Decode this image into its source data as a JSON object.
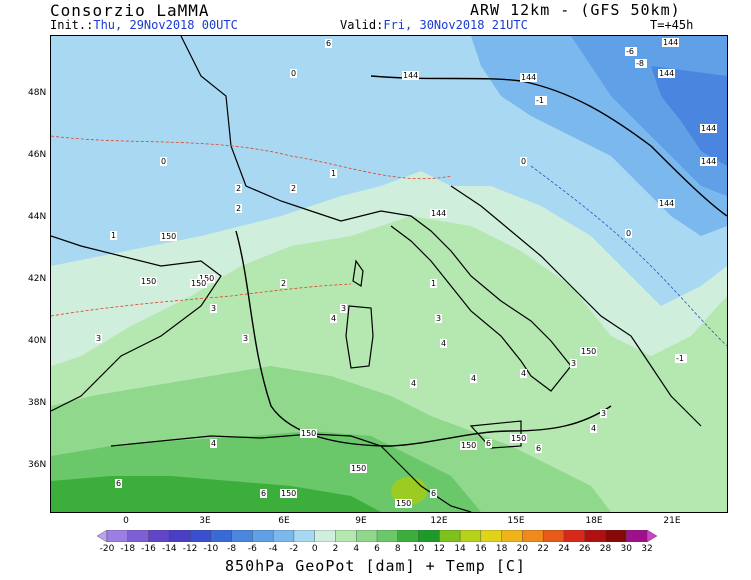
{
  "header": {
    "producer": "Consorzio LaMMA",
    "model": "ARW 12km - (GFS 50km)",
    "init_label": "Init.:",
    "init_value": "Thu, 29Nov2018 00UTC",
    "valid_label": "Valid:",
    "valid_value": "Fri, 30Nov2018 21UTC",
    "step": "T=+45h"
  },
  "axes": {
    "lat_labels": [
      "48N",
      "46N",
      "44N",
      "42N",
      "40N",
      "38N",
      "36N"
    ],
    "lon_labels": [
      "0",
      "3E",
      "6E",
      "9E",
      "12E",
      "15E",
      "18E",
      "21E"
    ]
  },
  "colorbar": {
    "labels": [
      "-20",
      "-18",
      "-16",
      "-14",
      "-12",
      "-10",
      "-8",
      "-6",
      "-4",
      "-2",
      "0",
      "2",
      "4",
      "6",
      "8",
      "10",
      "12",
      "14",
      "16",
      "18",
      "20",
      "22",
      "24",
      "26",
      "28",
      "30",
      "32"
    ],
    "colors": [
      "#b9a0f0",
      "#9d7ee6",
      "#7e5fd6",
      "#5f45c8",
      "#4a3fc4",
      "#3b4fd0",
      "#3a6ad8",
      "#4a86e0",
      "#5fa0e6",
      "#7bb8ee",
      "#a8d8f2",
      "#cfeedc",
      "#b5e8b0",
      "#8fd88c",
      "#6ac86a",
      "#3cae3c",
      "#1e9a2a",
      "#7cc21a",
      "#b8d21a",
      "#e0d41a",
      "#f0b41a",
      "#f08a1a",
      "#e85a1a",
      "#d8281a",
      "#b01010",
      "#880808",
      "#a0108c",
      "#d040c8"
    ]
  },
  "caption": "850hPa GeoPot [dam] + Temp [C]",
  "contour_labels": [
    {
      "t": "144",
      "c": "#000"
    },
    {
      "t": "144",
      "c": "#000"
    },
    {
      "t": "144",
      "c": "#000"
    },
    {
      "t": "144",
      "c": "#000"
    },
    {
      "t": "144",
      "c": "#000"
    },
    {
      "t": "144",
      "c": "#000"
    },
    {
      "t": "144",
      "c": "#000"
    },
    {
      "t": "144",
      "c": "#000"
    },
    {
      "t": "150",
      "c": "#000"
    },
    {
      "t": "150",
      "c": "#000"
    },
    {
      "t": "150",
      "c": "#000"
    },
    {
      "t": "150",
      "c": "#000"
    },
    {
      "t": "150",
      "c": "#000"
    },
    {
      "t": "150",
      "c": "#000"
    },
    {
      "t": "150",
      "c": "#000"
    },
    {
      "t": "150",
      "c": "#000"
    },
    {
      "t": "150",
      "c": "#000"
    },
    {
      "t": "150",
      "c": "#000"
    },
    {
      "t": "150",
      "c": "#000"
    },
    {
      "t": "-8",
      "c": "#000"
    },
    {
      "t": "-6",
      "c": "#000"
    },
    {
      "t": "-1",
      "c": "#000"
    },
    {
      "t": "-1",
      "c": "#000"
    },
    {
      "t": "0",
      "c": "#000"
    },
    {
      "t": "0",
      "c": "#000"
    },
    {
      "t": "0",
      "c": "#000"
    },
    {
      "t": "0",
      "c": "#000"
    },
    {
      "t": "1",
      "c": "#000"
    },
    {
      "t": "1",
      "c": "#000"
    },
    {
      "t": "1",
      "c": "#000"
    },
    {
      "t": "2",
      "c": "#000"
    },
    {
      "t": "2",
      "c": "#000"
    },
    {
      "t": "2",
      "c": "#000"
    },
    {
      "t": "2",
      "c": "#000"
    },
    {
      "t": "3",
      "c": "#000"
    },
    {
      "t": "3",
      "c": "#000"
    },
    {
      "t": "3",
      "c": "#000"
    },
    {
      "t": "3",
      "c": "#000"
    },
    {
      "t": "3",
      "c": "#000"
    },
    {
      "t": "3",
      "c": "#000"
    },
    {
      "t": "3",
      "c": "#000"
    },
    {
      "t": "4",
      "c": "#000"
    },
    {
      "t": "4",
      "c": "#000"
    },
    {
      "t": "4",
      "c": "#000"
    },
    {
      "t": "4",
      "c": "#000"
    },
    {
      "t": "4",
      "c": "#000"
    },
    {
      "t": "4",
      "c": "#000"
    },
    {
      "t": "4",
      "c": "#000"
    },
    {
      "t": "6",
      "c": "#000"
    },
    {
      "t": "6",
      "c": "#000"
    },
    {
      "t": "6",
      "c": "#000"
    },
    {
      "t": "6",
      "c": "#000"
    },
    {
      "t": "6",
      "c": "#000"
    },
    {
      "t": "6",
      "c": "#000"
    }
  ]
}
